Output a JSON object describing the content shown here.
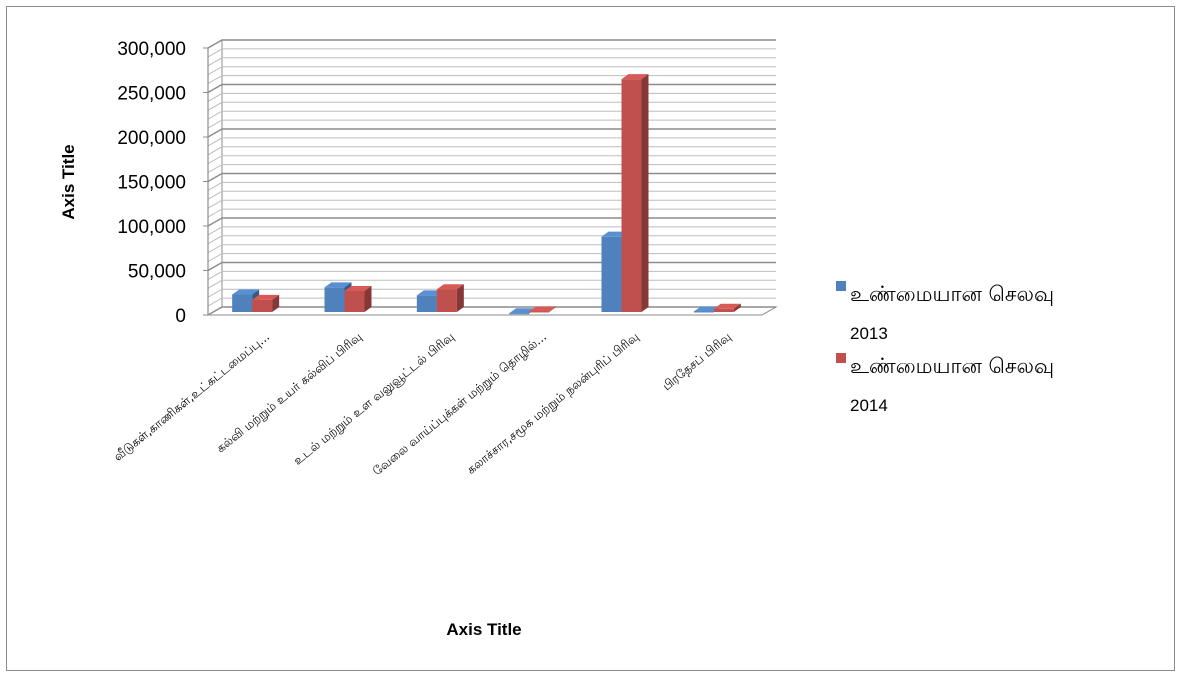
{
  "chart_data": {
    "type": "bar",
    "three_d": true,
    "categories": [
      "வீடுகள்,காணிகள்,உட்கட்டமைப்பு...",
      "கல்வி மற்றும் உயர் கல்விப் பிரிவு",
      "உடல் மற்றும் உள வலுவூட்டல் பிரிவு",
      "வேலை வாய்ப்புக்கள் மற்றும் தொழில்...",
      "கலாச்சார,சமூக மற்றும் நலன்புரிப் பிரிவு",
      "பிரதேசப் பிரிவு"
    ],
    "series": [
      {
        "name": "உண்மையான செலவு",
        "name_line2": "2013",
        "color": "#4f81bd",
        "values": [
          23000,
          31000,
          22000,
          2000,
          88000,
          4000
        ]
      },
      {
        "name": "உண்மையான செலவு",
        "name_line2": "2014",
        "color": "#c0504d",
        "values": [
          17000,
          27000,
          29000,
          4000,
          265000,
          7000
        ]
      }
    ],
    "y_ticks": [
      "0",
      "50,000",
      "100,000",
      "150,000",
      "200,000",
      "250,000",
      "300,000"
    ],
    "ylim": [
      0,
      300000
    ],
    "minor_gridline_step": 10000,
    "xlabel": "Axis Title",
    "ylabel": "Axis Title",
    "grid": true,
    "legend_position": "right"
  }
}
